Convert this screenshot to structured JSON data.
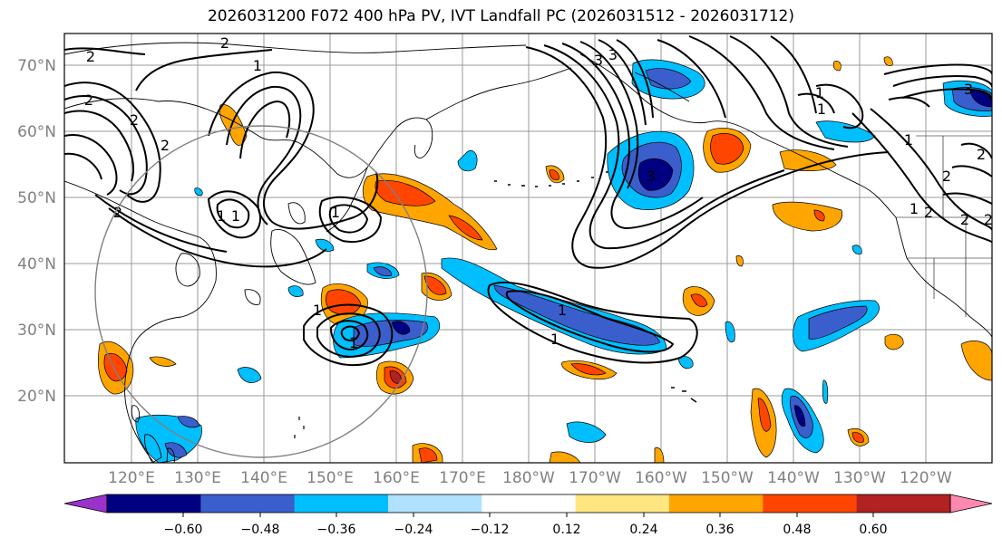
{
  "title": "2026031200 F072 400 hPa PV, IVT Landfall PC (2026031512 - 2026031712)",
  "lat_labels": [
    "70°N",
    "60°N",
    "50°N",
    "40°N",
    "30°N",
    "20°N"
  ],
  "lon_labels": [
    "120°E",
    "130°E",
    "140°E",
    "150°E",
    "160°E",
    "170°E",
    "180°W",
    "170°W",
    "160°W",
    "150°W",
    "140°W",
    "130°W",
    "120°W"
  ],
  "colorbar": {
    "tick_labels": [
      "−0.60",
      "−0.48",
      "−0.36",
      "−0.24",
      "−0.12",
      "0.12",
      "0.24",
      "0.36",
      "0.48",
      "0.60"
    ],
    "colors": [
      "#9933cc",
      "#000080",
      "#3a5fcd",
      "#00bfff",
      "#b0e2ff",
      "#ffffff",
      "#ffe680",
      "#ffa500",
      "#ff4500",
      "#b22222",
      "#ff88b0"
    ]
  },
  "contour_labels": [
    "2",
    "2",
    "2",
    "2",
    "2",
    "2",
    "2",
    "2",
    "1",
    "1",
    "1",
    "1",
    "1",
    "1",
    "1",
    "2",
    "2",
    "2",
    "1",
    "1",
    "1",
    "3",
    "3",
    "3",
    "3",
    "1",
    "1"
  ]
}
